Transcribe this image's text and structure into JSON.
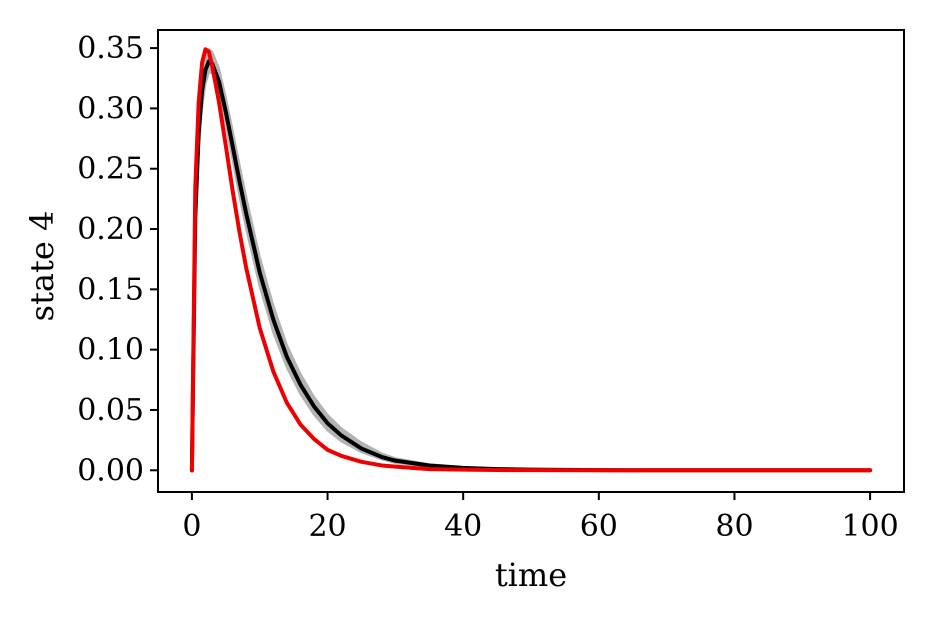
{
  "chart_data": {
    "type": "line",
    "title": "",
    "xlabel": "time",
    "ylabel": "state 4",
    "xlim": [
      -5,
      105
    ],
    "ylim": [
      -0.018,
      0.365
    ],
    "xticks": [
      0,
      20,
      40,
      60,
      80,
      100
    ],
    "xtick_labels": [
      "0",
      "20",
      "40",
      "60",
      "80",
      "100"
    ],
    "yticks": [
      0.0,
      0.05,
      0.1,
      0.15,
      0.2,
      0.25,
      0.3,
      0.35
    ],
    "ytick_labels": [
      "0.00",
      "0.05",
      "0.10",
      "0.15",
      "0.20",
      "0.25",
      "0.30",
      "0.35"
    ],
    "grid": false,
    "legend": "none",
    "x": [
      0,
      0.5,
      1,
      1.5,
      2,
      2.5,
      3,
      4,
      5,
      6,
      7,
      8,
      10,
      12,
      14,
      16,
      18,
      20,
      22,
      25,
      28,
      30,
      35,
      40,
      45,
      50,
      60,
      70,
      80,
      90,
      100
    ],
    "series": [
      {
        "color": "#000000",
        "values": [
          0.0,
          0.21,
          0.28,
          0.315,
          0.332,
          0.339,
          0.337,
          0.322,
          0.297,
          0.269,
          0.24,
          0.213,
          0.164,
          0.125,
          0.094,
          0.071,
          0.053,
          0.039,
          0.029,
          0.018,
          0.011,
          0.008,
          0.004,
          0.002,
          0.001,
          0.0005,
          0.0001,
          0.0,
          0.0,
          0.0,
          0.0
        ]
      },
      {
        "color": "#ee0000",
        "values": [
          0.0,
          0.235,
          0.305,
          0.338,
          0.349,
          0.347,
          0.335,
          0.305,
          0.269,
          0.232,
          0.198,
          0.168,
          0.118,
          0.082,
          0.056,
          0.038,
          0.026,
          0.017,
          0.012,
          0.007,
          0.004,
          0.003,
          0.001,
          0.0005,
          0.0002,
          0.0001,
          0.0,
          0.0,
          0.0,
          0.0,
          0.0
        ]
      }
    ],
    "band": {
      "color": "#b3b3b3",
      "lower": [
        0.0,
        0.195,
        0.265,
        0.3,
        0.32,
        0.33,
        0.329,
        0.312,
        0.286,
        0.257,
        0.227,
        0.2,
        0.152,
        0.114,
        0.085,
        0.063,
        0.046,
        0.033,
        0.024,
        0.015,
        0.009,
        0.006,
        0.003,
        0.0015,
        0.0007,
        0.0003,
        0.0,
        0.0,
        0.0,
        0.0,
        0.0
      ],
      "upper": [
        0.0,
        0.225,
        0.295,
        0.328,
        0.343,
        0.349,
        0.347,
        0.333,
        0.309,
        0.282,
        0.254,
        0.227,
        0.177,
        0.137,
        0.104,
        0.08,
        0.061,
        0.046,
        0.035,
        0.023,
        0.014,
        0.01,
        0.005,
        0.0025,
        0.0012,
        0.0006,
        0.0002,
        0.0,
        0.0,
        0.0,
        0.0
      ]
    }
  }
}
